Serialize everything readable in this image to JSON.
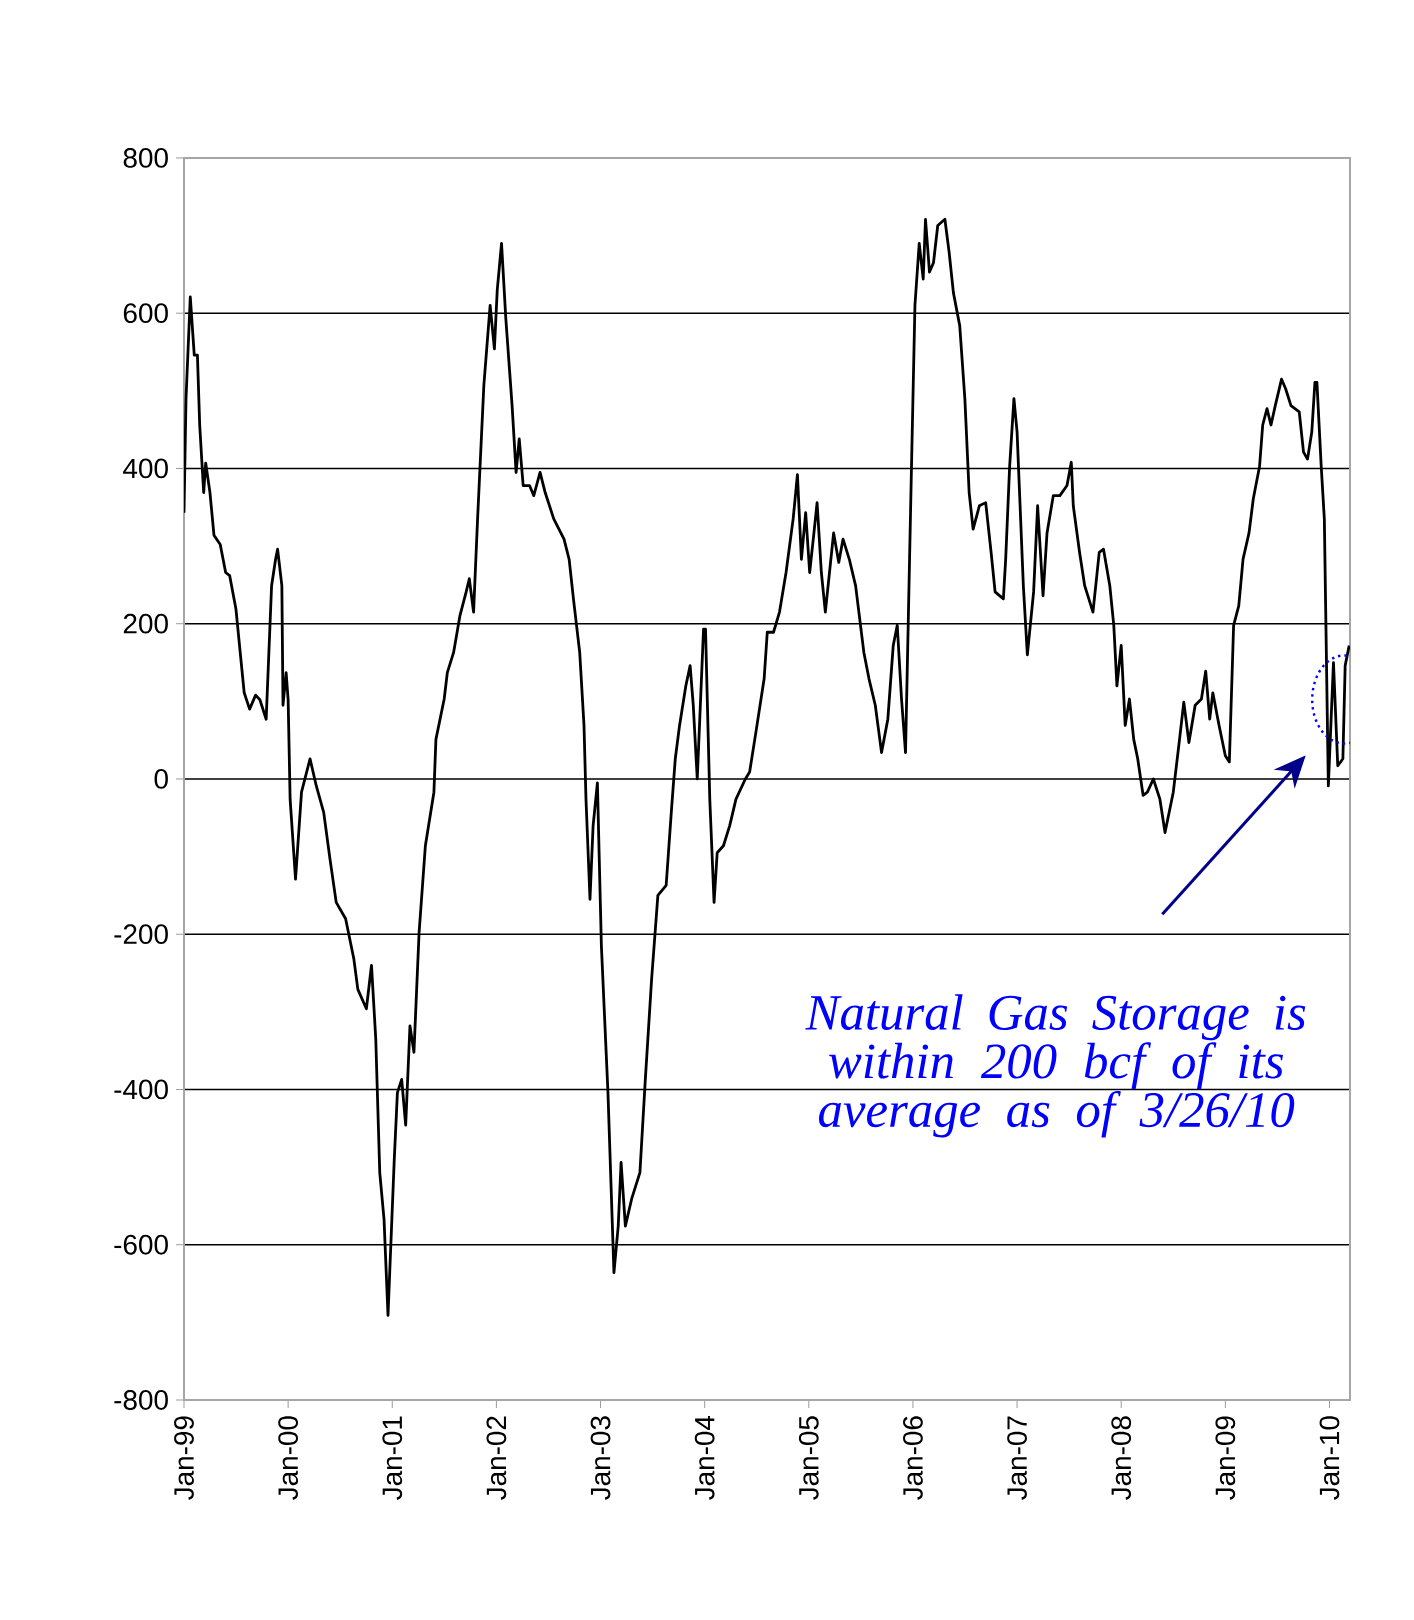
{
  "chart_data": {
    "type": "line",
    "xlim": [
      "1999-01-01",
      "2010-03-14"
    ],
    "ylim": [
      -800,
      800
    ],
    "yticks": [
      -800,
      -600,
      -400,
      -200,
      0,
      200,
      400,
      600,
      800
    ],
    "xticks": [
      {
        "value": "1999-01-01",
        "label": "Jan-99"
      },
      {
        "value": "2000-01-01",
        "label": "Jan-00"
      },
      {
        "value": "2001-01-01",
        "label": "Jan-01"
      },
      {
        "value": "2002-01-01",
        "label": "Jan-02"
      },
      {
        "value": "2003-01-01",
        "label": "Jan-03"
      },
      {
        "value": "2004-01-01",
        "label": "Jan-04"
      },
      {
        "value": "2005-01-01",
        "label": "Jan-05"
      },
      {
        "value": "2006-01-01",
        "label": "Jan-06"
      },
      {
        "value": "2007-01-01",
        "label": "Jan-07"
      },
      {
        "value": "2008-01-01",
        "label": "Jan-08"
      },
      {
        "value": "2009-01-01",
        "label": "Jan-09"
      },
      {
        "value": "2010-01-01",
        "label": "Jan-10"
      }
    ],
    "grid": "y",
    "marker": "none",
    "line_style": "solid",
    "annotations": [
      "Natural Gas Storage is within 200 bcf of its average as of 3/26/10"
    ],
    "series": [
      {
        "color": "#000000",
        "x": [
          "1999-01-01",
          "1999-01-08",
          "1999-01-23",
          "1999-02-06",
          "1999-02-17",
          "1999-02-25",
          "1999-03-11",
          "1999-03-18",
          "1999-04-02",
          "1999-04-16",
          "1999-05-08",
          "1999-05-27",
          "1999-06-10",
          "1999-07-02",
          "1999-07-17",
          "1999-07-31",
          "1999-08-19",
          "1999-09-09",
          "1999-09-24",
          "1999-10-16",
          "1999-11-04",
          "1999-11-18",
          "1999-11-25",
          "1999-12-10",
          "1999-12-14",
          "1999-12-25",
          "2000-01-01",
          "2000-01-08",
          "2000-01-27",
          "2000-02-17",
          "2000-03-18",
          "2000-04-09",
          "2000-05-05",
          "2000-05-27",
          "2000-06-18",
          "2000-07-21",
          "2000-08-19",
          "2000-09-02",
          "2000-10-02",
          "2000-10-20",
          "2000-11-04",
          "2000-11-18",
          "2000-12-03",
          "2000-12-17",
          "2001-01-08",
          "2001-01-19",
          "2001-02-03",
          "2001-02-17",
          "2001-03-04",
          "2001-03-18",
          "2001-04-05",
          "2001-04-27",
          "2001-05-27",
          "2001-06-03",
          "2001-07-02",
          "2001-07-13",
          "2001-08-04",
          "2001-08-26",
          "2001-09-17",
          "2001-09-28",
          "2001-10-13",
          "2001-10-27",
          "2001-11-18",
          "2001-12-10",
          "2001-12-25",
          "2002-01-04",
          "2002-01-19",
          "2002-02-03",
          "2002-02-25",
          "2002-03-11",
          "2002-03-22",
          "2002-04-05",
          "2002-04-27",
          "2002-05-12",
          "2002-06-03",
          "2002-06-21",
          "2002-07-21",
          "2002-08-26",
          "2002-09-13",
          "2002-09-28",
          "2002-10-20",
          "2002-11-04",
          "2002-11-11",
          "2002-11-25",
          "2002-12-06",
          "2002-12-21",
          "2003-01-04",
          "2003-01-27",
          "2003-02-17",
          "2003-03-04",
          "2003-03-14",
          "2003-03-29",
          "2003-04-20",
          "2003-05-19",
          "2003-06-07",
          "2003-06-29",
          "2003-07-21",
          "2003-08-19",
          "2003-09-06",
          "2003-09-20",
          "2003-10-05",
          "2003-10-27",
          "2003-11-11",
          "2003-11-22",
          "2003-12-06",
          "2003-12-28",
          "2004-01-04",
          "2004-01-19",
          "2004-02-03",
          "2004-02-14",
          "2004-03-07",
          "2004-03-29",
          "2004-04-20",
          "2004-05-23",
          "2004-06-07",
          "2004-06-29",
          "2004-07-28",
          "2004-08-08",
          "2004-08-30",
          "2004-09-20",
          "2004-10-13",
          "2004-11-07",
          "2004-11-22",
          "2004-12-06",
          "2004-12-21",
          "2005-01-04",
          "2005-01-19",
          "2005-01-30",
          "2005-02-14",
          "2005-02-28",
          "2005-03-29",
          "2005-04-16",
          "2005-05-01",
          "2005-05-23",
          "2005-06-14",
          "2005-07-13",
          "2005-07-31",
          "2005-08-22",
          "2005-09-13",
          "2005-10-05",
          "2005-10-24",
          "2005-11-07",
          "2005-11-22",
          "2005-12-06",
          "2005-12-28",
          "2006-01-08",
          "2006-01-23",
          "2006-02-06",
          "2006-02-14",
          "2006-02-28",
          "2006-03-14",
          "2006-03-29",
          "2006-04-23",
          "2006-05-08",
          "2006-05-23",
          "2006-06-14",
          "2006-07-02",
          "2006-07-17",
          "2006-07-31",
          "2006-08-22",
          "2006-09-13",
          "2006-10-02",
          "2006-10-16",
          "2006-11-14",
          "2006-11-22",
          "2006-12-06",
          "2006-12-21",
          "2007-01-01",
          "2007-01-23",
          "2007-02-06",
          "2007-02-28",
          "2007-03-14",
          "2007-04-02",
          "2007-04-16",
          "2007-05-08",
          "2007-05-31",
          "2007-06-25",
          "2007-07-10",
          "2007-07-17",
          "2007-08-08",
          "2007-08-26",
          "2007-09-24",
          "2007-10-16",
          "2007-10-31",
          "2007-11-22",
          "2007-12-06",
          "2007-12-17",
          "2008-01-01",
          "2008-01-15",
          "2008-01-30",
          "2008-02-14",
          "2008-02-28",
          "2008-03-18",
          "2008-04-02",
          "2008-04-23",
          "2008-05-16",
          "2008-06-03",
          "2008-07-02",
          "2008-07-24",
          "2008-08-08",
          "2008-08-26",
          "2008-09-17",
          "2008-10-09",
          "2008-10-24",
          "2008-11-07",
          "2008-11-18",
          "2008-12-10",
          "2009-01-01",
          "2009-01-15",
          "2009-01-30",
          "2009-02-17",
          "2009-03-04",
          "2009-03-25",
          "2009-04-09",
          "2009-05-01",
          "2009-05-12",
          "2009-05-27",
          "2009-06-10",
          "2009-06-25",
          "2009-07-17",
          "2009-07-31",
          "2009-08-19",
          "2009-09-17",
          "2009-10-02",
          "2009-10-16",
          "2009-10-31",
          "2009-11-11",
          "2009-11-18",
          "2009-12-03",
          "2009-12-14",
          "2009-12-21",
          "2009-12-28",
          "2010-01-15",
          "2010-01-30",
          "2010-02-17",
          "2010-02-25",
          "2010-03-11"
        ],
        "values": [
          343,
          490,
          621,
          546,
          546,
          456,
          369,
          407,
          369,
          314,
          302,
          266,
          262,
          219,
          163,
          111,
          90,
          108,
          102,
          77,
          249,
          283,
          296,
          249,
          95,
          137,
          102,
          -26,
          -129,
          -17,
          26,
          -9,
          -43,
          -103,
          -159,
          -180,
          -232,
          -271,
          -296,
          -240,
          -335,
          -507,
          -567,
          -691,
          -490,
          -404,
          -387,
          -446,
          -318,
          -352,
          -198,
          -86,
          -17,
          51,
          103,
          137,
          163,
          210,
          241,
          258,
          215,
          335,
          507,
          610,
          554,
          630,
          690,
          593,
          481,
          395,
          438,
          378,
          378,
          365,
          395,
          369,
          335,
          309,
          283,
          232,
          163,
          69,
          -26,
          -155,
          -60,
          -5,
          -215,
          -404,
          -636,
          -576,
          -494,
          -576,
          -541,
          -507,
          -387,
          -258,
          -150,
          -137,
          -43,
          26,
          69,
          120,
          146,
          95,
          0,
          193,
          193,
          -26,
          -159,
          -95,
          -86,
          -60,
          -26,
          0,
          9,
          60,
          129,
          189,
          189,
          215,
          266,
          335,
          392,
          283,
          343,
          266,
          317,
          356,
          266,
          215,
          317,
          279,
          309,
          283,
          249,
          163,
          129,
          95,
          34,
          77,
          172,
          198,
          103,
          34,
          421,
          610,
          690,
          644,
          721,
          653,
          665,
          713,
          721,
          678,
          626,
          584,
          490,
          369,
          322,
          352,
          356,
          292,
          241,
          232,
          283,
          403,
          490,
          447,
          249,
          160,
          241,
          352,
          236,
          317,
          365,
          365,
          378,
          408,
          352,
          292,
          249,
          215,
          292,
          296,
          249,
          198,
          120,
          172,
          69,
          103,
          51,
          26,
          -21,
          -17,
          0,
          -26,
          -69,
          -17,
          51,
          99,
          47,
          95,
          103,
          139,
          77,
          111,
          69,
          30,
          22,
          198,
          223,
          283,
          317,
          361,
          403,
          456,
          477,
          456,
          481,
          515,
          503,
          481,
          473,
          421,
          412,
          447,
          511,
          511,
          403,
          335,
          163,
          -9,
          150,
          17,
          26,
          146,
          172
        ]
      }
    ]
  }
}
